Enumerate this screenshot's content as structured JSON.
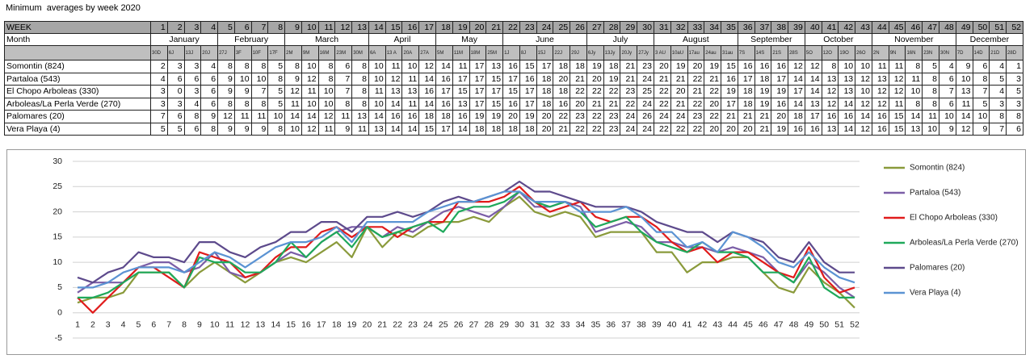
{
  "title": "Minimum  averages by week 2020",
  "table": {
    "week_label": "WEEK",
    "month_label": "Month",
    "months": [
      "January",
      "February",
      "March",
      "April",
      "May",
      "June",
      "July",
      "August",
      "September",
      "October",
      "November",
      "December"
    ],
    "dates": [
      "30D",
      "6J",
      "13J",
      "20J",
      "27J",
      "3F",
      "10F",
      "17F",
      "2M",
      "9M",
      "16M",
      "23M",
      "30M",
      "6A",
      "13 A",
      "20A",
      "27A",
      "5M",
      "11M",
      "18M",
      "25M",
      "1J",
      "8J",
      "15J",
      "22J",
      "29J",
      "6Jy",
      "13Jy",
      "20Jy",
      "27Jy",
      "3 AU",
      "10aU",
      "17au",
      "24au",
      "31au",
      "7S",
      "14S",
      "21S",
      "28S",
      "5O",
      "12O",
      "19O",
      "26O",
      "2N",
      "9N",
      "16N",
      "23N",
      "30N",
      "7D",
      "14D",
      "21D",
      "28D"
    ]
  },
  "chart_data": {
    "type": "line",
    "categories": [
      1,
      2,
      3,
      4,
      5,
      6,
      7,
      8,
      9,
      10,
      11,
      12,
      13,
      14,
      15,
      16,
      17,
      18,
      19,
      20,
      21,
      22,
      23,
      24,
      25,
      26,
      27,
      28,
      29,
      30,
      31,
      32,
      33,
      34,
      35,
      36,
      37,
      38,
      39,
      40,
      41,
      42,
      43,
      44,
      45,
      46,
      47,
      48,
      49,
      50,
      51,
      52
    ],
    "series": [
      {
        "name": "Somontin (824)",
        "color": "#8a9a3b",
        "values": [
          2,
          3,
          3,
          4,
          8,
          8,
          8,
          5,
          8,
          10,
          8,
          6,
          8,
          10,
          11,
          10,
          12,
          14,
          11,
          17,
          13,
          16,
          15,
          17,
          18,
          18,
          19,
          18,
          21,
          23,
          20,
          19,
          20,
          19,
          15,
          16,
          16,
          16,
          12,
          12,
          8,
          10,
          10,
          11,
          11,
          8,
          5,
          4,
          9,
          6,
          4,
          1
        ]
      },
      {
        "name": "Partaloa (543)",
        "color": "#7b5ea7",
        "values": [
          4,
          6,
          6,
          6,
          9,
          10,
          10,
          8,
          9,
          12,
          8,
          7,
          8,
          10,
          12,
          11,
          14,
          16,
          17,
          17,
          15,
          17,
          16,
          18,
          20,
          21,
          20,
          19,
          21,
          24,
          21,
          21,
          22,
          21,
          16,
          17,
          18,
          17,
          14,
          14,
          13,
          13,
          12,
          13,
          12,
          11,
          8,
          6,
          10,
          8,
          5,
          3
        ]
      },
      {
        "name": "El Chopo Arboleas (330)",
        "color": "#e01b1b",
        "values": [
          3,
          0,
          3,
          6,
          9,
          9,
          7,
          5,
          12,
          11,
          10,
          7,
          8,
          11,
          13,
          13,
          16,
          17,
          15,
          17,
          17,
          15,
          17,
          18,
          18,
          22,
          22,
          22,
          23,
          25,
          22,
          20,
          21,
          22,
          19,
          18,
          19,
          19,
          17,
          14,
          12,
          13,
          10,
          12,
          12,
          10,
          8,
          7,
          13,
          7,
          4,
          5
        ]
      },
      {
        "name": "Arboleas/La Perla Verde (270)",
        "color": "#1fa95b",
        "values": [
          3,
          3,
          4,
          6,
          8,
          8,
          8,
          5,
          11,
          10,
          10,
          8,
          8,
          10,
          14,
          11,
          14,
          16,
          13,
          17,
          15,
          16,
          17,
          18,
          16,
          20,
          21,
          21,
          22,
          24,
          22,
          21,
          22,
          20,
          17,
          18,
          19,
          16,
          14,
          13,
          12,
          14,
          12,
          12,
          11,
          8,
          8,
          6,
          11,
          5,
          3,
          3
        ]
      },
      {
        "name": "Palomares (20)",
        "color": "#5d4a8c",
        "values": [
          7,
          6,
          8,
          9,
          12,
          11,
          11,
          10,
          14,
          14,
          12,
          11,
          13,
          14,
          16,
          16,
          18,
          18,
          16,
          19,
          19,
          20,
          19,
          20,
          22,
          23,
          22,
          23,
          24,
          26,
          24,
          24,
          23,
          22,
          21,
          21,
          21,
          20,
          18,
          17,
          16,
          16,
          14,
          16,
          15,
          14,
          11,
          10,
          14,
          10,
          8,
          8
        ]
      },
      {
        "name": "Vera Playa (4)",
        "color": "#5b93d3",
        "values": [
          5,
          5,
          6,
          8,
          9,
          9,
          9,
          8,
          10,
          12,
          11,
          9,
          11,
          13,
          14,
          14,
          15,
          17,
          14,
          18,
          18,
          18,
          18,
          20,
          21,
          22,
          22,
          23,
          24,
          24,
          22,
          22,
          22,
          20,
          20,
          20,
          21,
          19,
          16,
          16,
          13,
          14,
          12,
          16,
          15,
          13,
          10,
          9,
          12,
          9,
          7,
          6
        ]
      }
    ],
    "ylim": [
      -5,
      30
    ],
    "yticks": [
      -5,
      0,
      5,
      10,
      15,
      20,
      25,
      30
    ],
    "grid": true,
    "legend": "right"
  }
}
